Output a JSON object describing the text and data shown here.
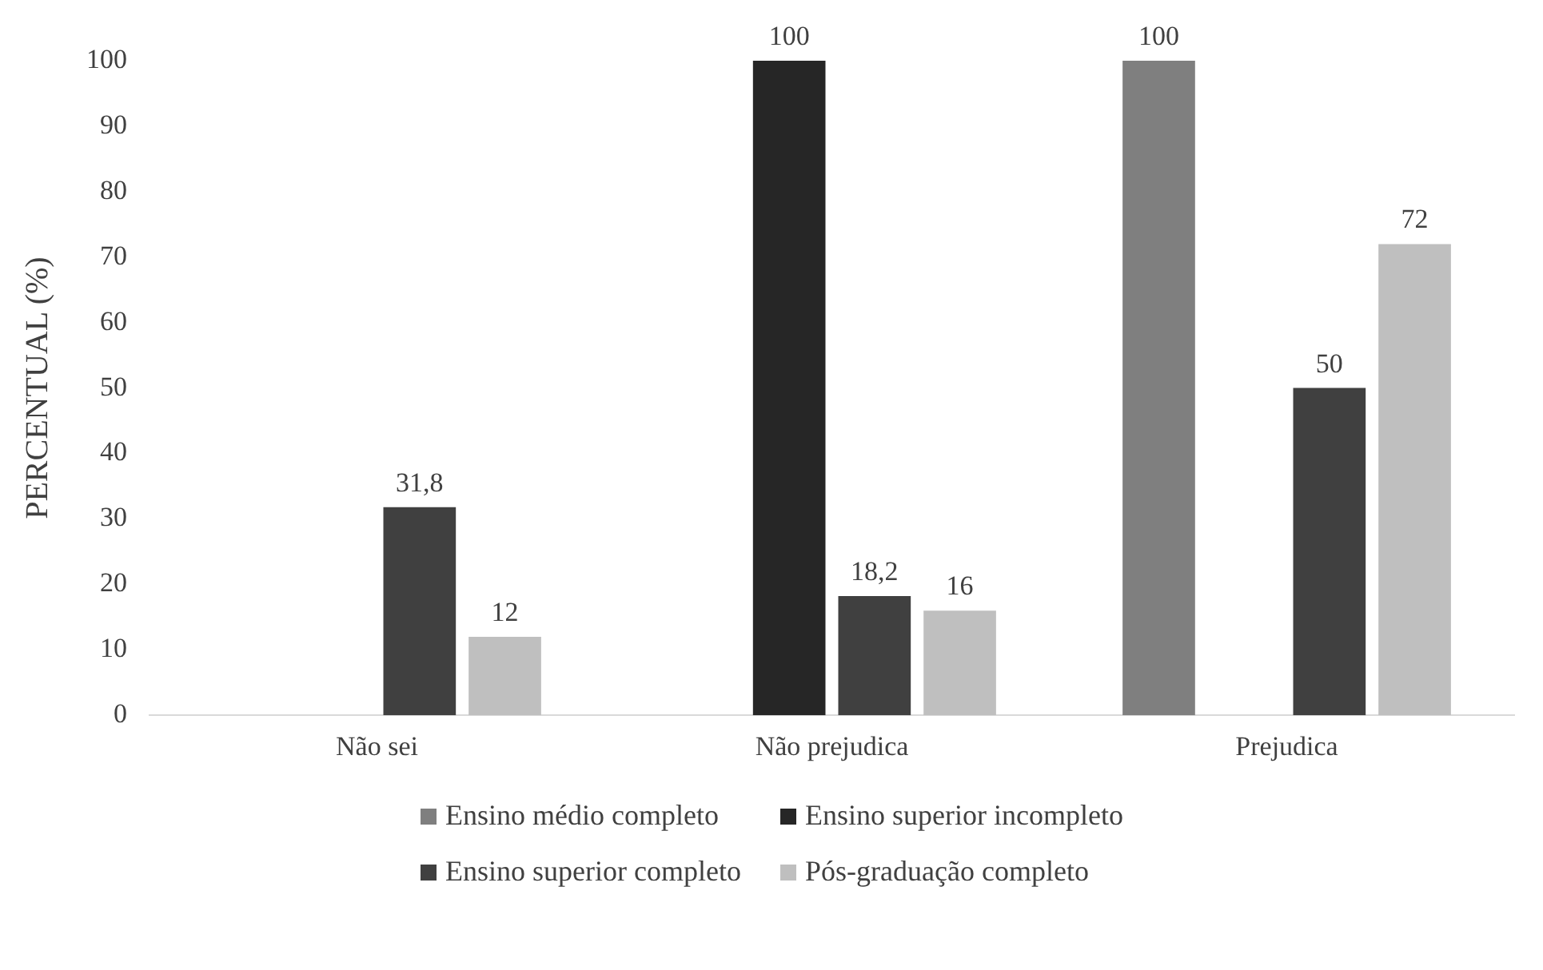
{
  "chart_data": {
    "type": "bar",
    "ylabel": "PERCENTUAL (%)",
    "categories": [
      "Não sei",
      "Não prejudica",
      "Prejudica"
    ],
    "series": [
      {
        "name": "Ensino médio completo",
        "color": "#7f7f7f",
        "values": [
          null,
          null,
          100
        ],
        "value_labels": [
          null,
          null,
          "100"
        ]
      },
      {
        "name": "Ensino superior incompleto",
        "color": "#262626",
        "values": [
          null,
          100,
          null
        ],
        "value_labels": [
          null,
          "100",
          null
        ]
      },
      {
        "name": "Ensino superior completo",
        "color": "#404040",
        "values": [
          31.8,
          18.2,
          50
        ],
        "value_labels": [
          "31,8",
          "18,2",
          "50"
        ]
      },
      {
        "name": "Pós-graduação completo",
        "color": "#bfbfbf",
        "values": [
          12,
          16,
          72
        ],
        "value_labels": [
          "12",
          "16",
          "72"
        ]
      }
    ],
    "ylim": [
      0,
      100
    ],
    "yticks": [
      0,
      10,
      20,
      30,
      40,
      50,
      60,
      70,
      80,
      90,
      100
    ],
    "grid": false,
    "legend": "bottom"
  }
}
